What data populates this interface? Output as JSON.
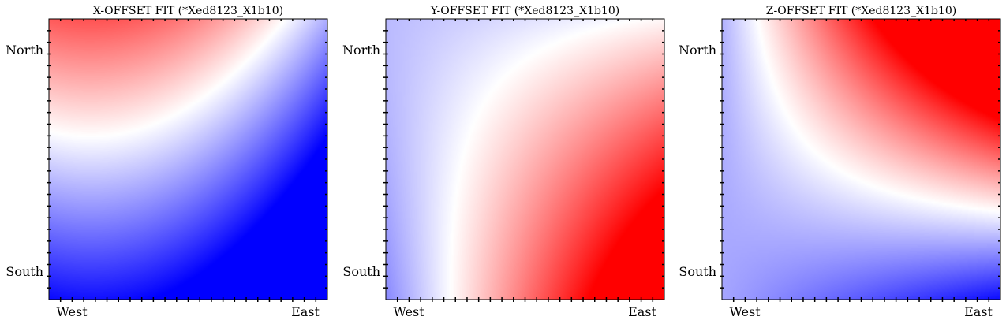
{
  "chart_data": [
    {
      "type": "heatmap",
      "title": "X-OFFSET FIT (*Xed8123_X1b10)",
      "xticklabels": [
        "West",
        "East"
      ],
      "yticklabels": [
        "North",
        "South"
      ],
      "colormap": "bwr",
      "colors": {
        "low": "#0000ff",
        "mid": "#ffffff",
        "high": "#ff0000"
      },
      "grid": false
    },
    {
      "type": "heatmap",
      "title": "Y-OFFSET FIT (*Xed8123_X1b10)",
      "xticklabels": [
        "West",
        "East"
      ],
      "yticklabels": [
        "North",
        "South"
      ],
      "colormap": "bwr",
      "colors": {
        "low": "#0000ff",
        "mid": "#ffffff",
        "high": "#ff0000"
      },
      "grid": false
    },
    {
      "type": "heatmap",
      "title": "Z-OFFSET FIT (*Xed8123_X1b10)",
      "xticklabels": [
        "West",
        "East"
      ],
      "yticklabels": [
        "North",
        "South"
      ],
      "colormap": "bwr",
      "colors": {
        "low": "#0000ff",
        "mid": "#ffffff",
        "high": "#ff0000"
      },
      "grid": false
    }
  ]
}
